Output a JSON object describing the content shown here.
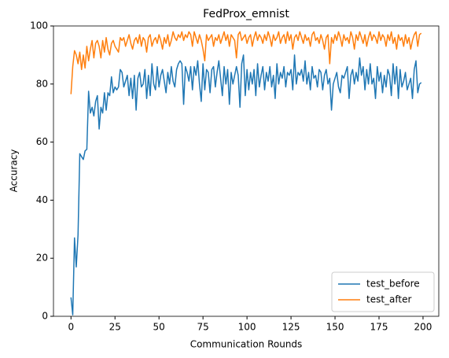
{
  "chart_data": {
    "type": "line",
    "title": "FedProx_emnist",
    "xlabel": "Communication Rounds",
    "ylabel": "Accuracy",
    "x": [
      0,
      1,
      2,
      3,
      4,
      5,
      6,
      7,
      8,
      9,
      10,
      11,
      12,
      13,
      14,
      15,
      16,
      17,
      18,
      19,
      20,
      21,
      22,
      23,
      24,
      25,
      26,
      27,
      28,
      29,
      30,
      31,
      32,
      33,
      34,
      35,
      36,
      37,
      38,
      39,
      40,
      41,
      42,
      43,
      44,
      45,
      46,
      47,
      48,
      49,
      50,
      51,
      52,
      53,
      54,
      55,
      56,
      57,
      58,
      59,
      60,
      61,
      62,
      63,
      64,
      65,
      66,
      67,
      68,
      69,
      70,
      71,
      72,
      73,
      74,
      75,
      76,
      77,
      78,
      79,
      80,
      81,
      82,
      83,
      84,
      85,
      86,
      87,
      88,
      89,
      90,
      91,
      92,
      93,
      94,
      95,
      96,
      97,
      98,
      99,
      100,
      101,
      102,
      103,
      104,
      105,
      106,
      107,
      108,
      109,
      110,
      111,
      112,
      113,
      114,
      115,
      116,
      117,
      118,
      119,
      120,
      121,
      122,
      123,
      124,
      125,
      126,
      127,
      128,
      129,
      130,
      131,
      132,
      133,
      134,
      135,
      136,
      137,
      138,
      139,
      140,
      141,
      142,
      143,
      144,
      145,
      146,
      147,
      148,
      149,
      150,
      151,
      152,
      153,
      154,
      155,
      156,
      157,
      158,
      159,
      160,
      161,
      162,
      163,
      164,
      165,
      166,
      167,
      168,
      169,
      170,
      171,
      172,
      173,
      174,
      175,
      176,
      177,
      178,
      179,
      180,
      181,
      182,
      183,
      184,
      185,
      186,
      187,
      188,
      189,
      190,
      191,
      192,
      193,
      194,
      195,
      196,
      197,
      198,
      199
    ],
    "series": [
      {
        "name": "test_before",
        "color": "#1f77b4",
        "values": [
          6.5,
          0.5,
          27,
          17,
          28,
          56,
          55,
          54,
          57,
          57.5,
          77.5,
          70,
          72,
          69,
          74,
          76,
          64.5,
          72,
          70,
          77,
          71,
          77,
          76,
          82.5,
          77,
          79,
          78,
          79,
          85,
          84,
          79,
          81,
          83,
          76,
          82,
          75,
          83,
          71,
          82,
          84,
          79,
          80,
          85,
          75,
          83,
          76,
          87,
          80,
          78,
          86,
          79,
          83,
          85,
          81,
          77,
          84,
          80,
          86,
          81,
          79,
          85,
          87,
          88,
          87,
          73,
          86,
          84,
          81,
          86,
          78,
          86,
          83,
          88,
          80,
          74,
          87,
          78,
          85,
          84,
          77,
          85,
          86,
          79,
          84,
          88,
          82,
          76,
          86,
          80,
          85,
          73,
          84,
          80,
          83,
          86,
          83,
          72,
          87,
          90,
          76,
          85,
          78,
          84,
          80,
          85,
          76,
          87,
          79,
          83,
          86,
          78,
          84,
          81,
          86,
          79,
          83,
          75,
          87,
          80,
          84,
          82,
          86,
          79,
          84,
          83,
          85,
          78,
          90,
          80,
          84,
          83,
          85,
          81,
          88,
          80,
          84,
          78,
          86,
          82,
          83,
          79,
          85,
          84,
          78,
          83,
          85,
          80,
          82,
          71,
          80,
          82,
          84,
          79,
          77,
          83,
          82,
          84,
          86,
          75,
          83,
          85,
          80,
          84,
          81,
          89,
          83,
          86,
          78,
          85,
          80,
          87,
          80,
          82,
          75,
          86,
          81,
          84,
          77,
          83,
          79,
          85,
          83,
          76,
          87,
          80,
          86,
          75,
          85,
          79,
          81,
          84,
          78,
          80,
          82,
          75,
          85,
          88,
          77,
          80,
          80.5
        ]
      },
      {
        "name": "test_after",
        "color": "#ff7f0e",
        "values": [
          76.5,
          86,
          91.5,
          90,
          87,
          91,
          85,
          90,
          85.5,
          93,
          88,
          92,
          95,
          89,
          94,
          95,
          93,
          89,
          95,
          91,
          96,
          92,
          90,
          94,
          95,
          93,
          92,
          91,
          96,
          95,
          96,
          93,
          95,
          97,
          94,
          92,
          95,
          96,
          94,
          97,
          93,
          96,
          95,
          91,
          96,
          97,
          93,
          95,
          96,
          94,
          97,
          95,
          92,
          96,
          94,
          97,
          93,
          95,
          98,
          96,
          95,
          97,
          96,
          98,
          95,
          97,
          96,
          98,
          97,
          93,
          98,
          96,
          94,
          97,
          95,
          92,
          88,
          97,
          95,
          96,
          97,
          93,
          96,
          95,
          97,
          94,
          96,
          98,
          95,
          97,
          93,
          97,
          96,
          95,
          89,
          97,
          98,
          95,
          96,
          97,
          94,
          96,
          97,
          93,
          96,
          98,
          95,
          97,
          96,
          94,
          97,
          95,
          98,
          96,
          93,
          97,
          95,
          96,
          98,
          94,
          96,
          97,
          94,
          98,
          95,
          97,
          92,
          96,
          97,
          95,
          98,
          96,
          94,
          97,
          95,
          96,
          93,
          97,
          98,
          95,
          96,
          94,
          97,
          95,
          92,
          96,
          97,
          87,
          96,
          94,
          97,
          95,
          98,
          96,
          93,
          97,
          95,
          96,
          94,
          98,
          96,
          92,
          97,
          95,
          98,
          96,
          94,
          97,
          93,
          96,
          98,
          95,
          97,
          96,
          94,
          98,
          95,
          97,
          96,
          93,
          97,
          95,
          98,
          94,
          96,
          92,
          97,
          95,
          96,
          93,
          97,
          94,
          96,
          92,
          95,
          97,
          98,
          93,
          97,
          97.5
        ]
      }
    ],
    "xlim": [
      -9.95,
      208.95
    ],
    "xticks": [
      0,
      25,
      50,
      75,
      100,
      125,
      150,
      175,
      200
    ],
    "ylim": [
      0,
      100
    ],
    "yticks": [
      0,
      20,
      40,
      60,
      80,
      100
    ],
    "legend": "lower right"
  }
}
